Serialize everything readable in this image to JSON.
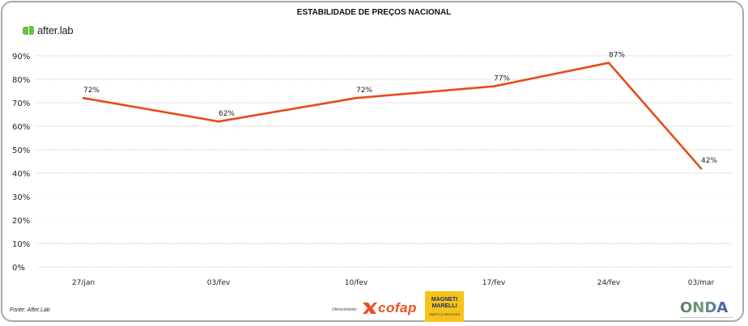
{
  "brand": {
    "name": "after.lab",
    "icon": "after-lab-logo-icon",
    "color": "#6abf3f"
  },
  "footer": {
    "source": "Fonte: After.Lab",
    "offered_by": "Oferecimento:",
    "sponsor1": "cofap",
    "sponsor2_name": "MAGNETI MARELLI",
    "sponsor2_sub": "PARTS & SERVICES",
    "partner": "ONDA"
  },
  "chart_data": {
    "type": "line",
    "title": "ESTABILIDADE DE PREÇOS NACIONAL",
    "xlabel": "",
    "ylabel": "",
    "categories": [
      "27/jan",
      "03/fev",
      "10/fev",
      "17/fev",
      "24/fev",
      "03/mar"
    ],
    "series": [
      {
        "name": "Estabilidade de preços",
        "values": [
          72,
          62,
          72,
          77,
          87,
          42
        ],
        "labels": [
          "72%",
          "62%",
          "72%",
          "77%",
          "87%",
          "42%"
        ],
        "color": "#e84a1c"
      }
    ],
    "ylim": [
      0,
      90
    ],
    "yticks": [
      0,
      10,
      20,
      30,
      40,
      50,
      60,
      70,
      80,
      90
    ],
    "ytick_labels": [
      "0%",
      "10%",
      "20%",
      "30%",
      "40%",
      "50%",
      "60%",
      "70%",
      "80%",
      "90%"
    ],
    "grid": true,
    "legend": "none"
  }
}
